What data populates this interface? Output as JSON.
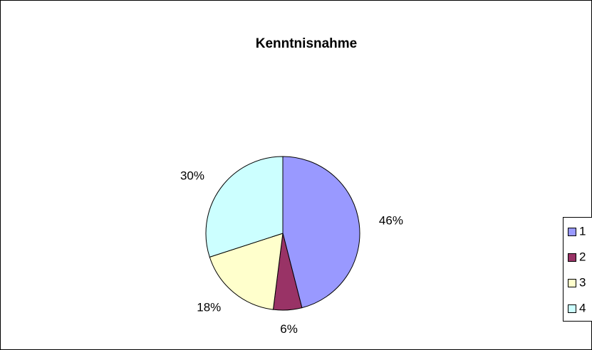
{
  "chart_data": {
    "type": "pie",
    "title": "Kenntnisnahme",
    "categories": [
      "1",
      "2",
      "3",
      "4"
    ],
    "values": [
      46,
      6,
      18,
      30
    ],
    "value_labels": [
      "46%",
      "6%",
      "18%",
      "30%"
    ],
    "colors": [
      "#9999ff",
      "#993366",
      "#ffffcc",
      "#ccffff"
    ],
    "legend": "right"
  }
}
